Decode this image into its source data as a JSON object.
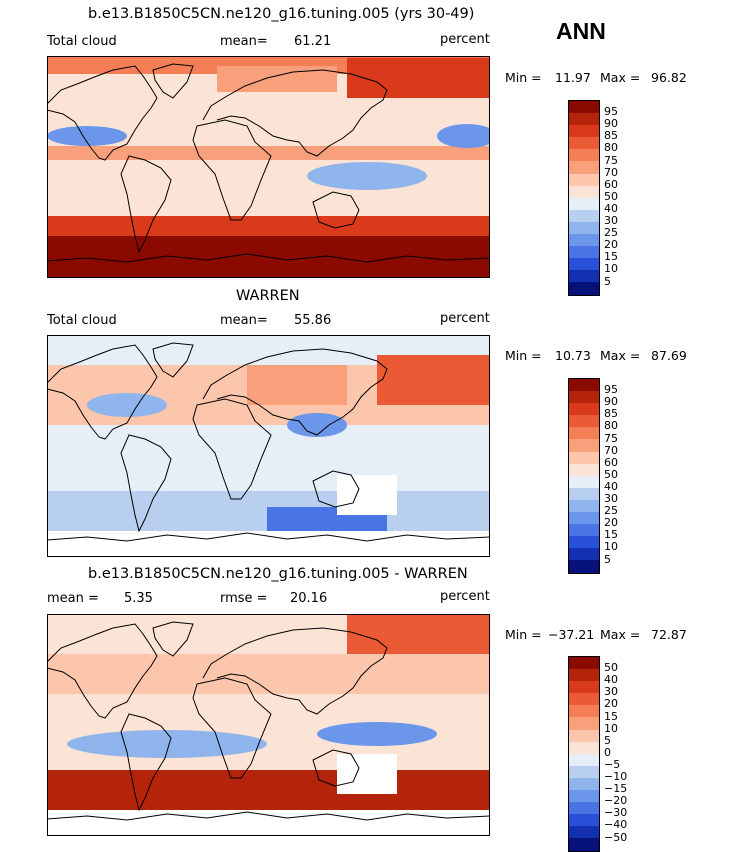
{
  "season": "ANN",
  "chart_data": [
    {
      "type": "heatmap",
      "title": "b.e13.B1850C5CN.ne120_g16.tuning.005 (yrs 30-49)",
      "left_label": "Total cloud",
      "stat_label": "mean=",
      "stat_value": "61.21",
      "units": "percent",
      "min_label": "Min =",
      "min_value": "11.97",
      "max_label": "Max =",
      "max_value": "96.82",
      "colorbar_levels": [
        "95",
        "90",
        "85",
        "80",
        "75",
        "70",
        "60",
        "50",
        "40",
        "30",
        "25",
        "20",
        "15",
        "10",
        "5"
      ],
      "colorbar_colors": [
        "#8b0a00",
        "#b4240a",
        "#d93a1c",
        "#ea5a34",
        "#f47f56",
        "#f8a07c",
        "#fbc6ab",
        "#fbe4d6",
        "#e6eef8",
        "#b8cff0",
        "#90b4ec",
        "#6b96ea",
        "#4a74e4",
        "#2850d8",
        "#1430b0",
        "#06127a"
      ]
    },
    {
      "type": "heatmap",
      "title": "WARREN",
      "left_label": "Total cloud",
      "stat_label": "mean=",
      "stat_value": "55.86",
      "units": "percent",
      "min_label": "Min =",
      "min_value": "10.73",
      "max_label": "Max =",
      "max_value": "87.69",
      "colorbar_levels": [
        "95",
        "90",
        "85",
        "80",
        "75",
        "70",
        "60",
        "50",
        "40",
        "30",
        "25",
        "20",
        "15",
        "10",
        "5"
      ],
      "colorbar_colors": [
        "#8b0a00",
        "#b4240a",
        "#d93a1c",
        "#ea5a34",
        "#f47f56",
        "#f8a07c",
        "#fbc6ab",
        "#fbe4d6",
        "#e6eef8",
        "#b8cff0",
        "#90b4ec",
        "#6b96ea",
        "#4a74e4",
        "#2850d8",
        "#1430b0",
        "#06127a"
      ]
    },
    {
      "type": "heatmap",
      "title": "b.e13.B1850C5CN.ne120_g16.tuning.005 - WARREN",
      "stat_label": "mean =",
      "stat_value": "5.35",
      "rmse_label": "rmse =",
      "rmse_value": "20.16",
      "units": "percent",
      "min_label": "Min =",
      "min_value": "−37.21",
      "max_label": "Max =",
      "max_value": "72.87",
      "colorbar_levels": [
        "50",
        "40",
        "30",
        "20",
        "15",
        "10",
        "5",
        "0",
        "−5",
        "−10",
        "−15",
        "−20",
        "−30",
        "−40",
        "−50"
      ],
      "colorbar_colors": [
        "#8b0a00",
        "#b4240a",
        "#d93a1c",
        "#ea5a34",
        "#f47f56",
        "#f8a07c",
        "#fbc6ab",
        "#fbe4d6",
        "#e6eef8",
        "#b8cff0",
        "#90b4ec",
        "#6b96ea",
        "#4a74e4",
        "#2850d8",
        "#1430b0",
        "#06127a"
      ]
    }
  ]
}
